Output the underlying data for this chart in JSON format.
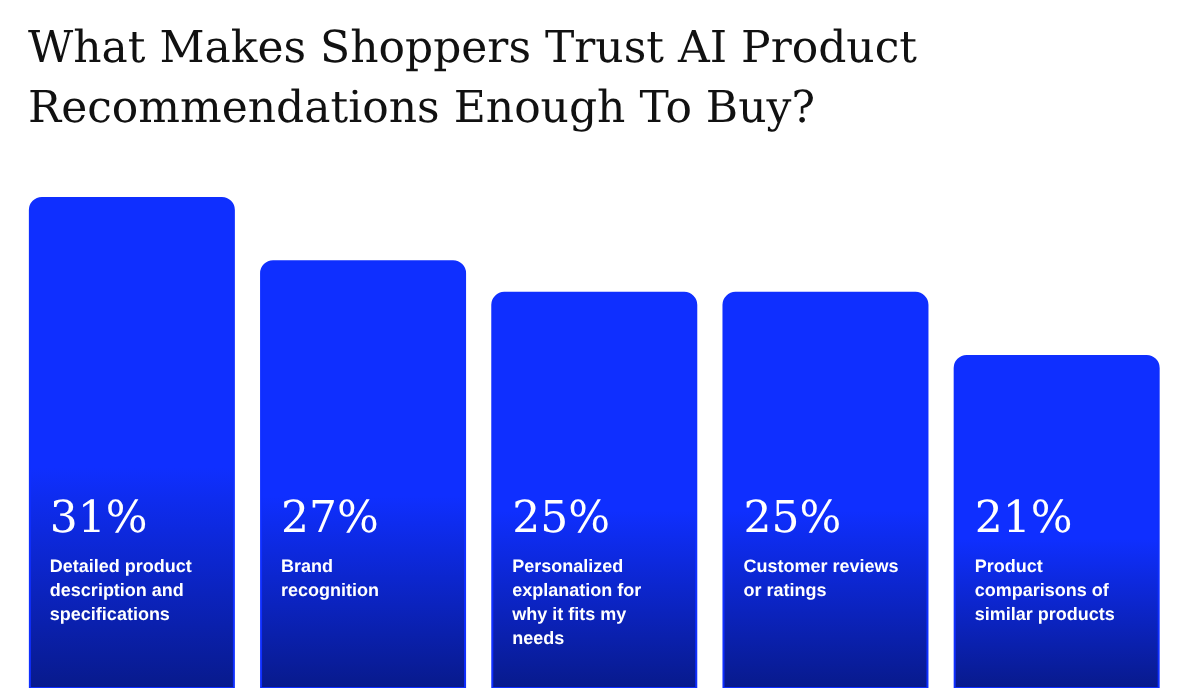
{
  "chart_data": {
    "type": "bar",
    "title": "What Makes Shoppers Trust AI Product Recommendations Enough To Buy?",
    "categories": [
      "Detailed product description and specifications",
      "Brand recognition",
      "Personalized explanation for why it fits my needs",
      "Customer reviews or ratings",
      "Product comparisons of similar products"
    ],
    "values": [
      31,
      27,
      25,
      25,
      21
    ],
    "value_labels": [
      "31%",
      "27%",
      "25%",
      "25%",
      "21%"
    ],
    "color": "#0f2fff"
  }
}
